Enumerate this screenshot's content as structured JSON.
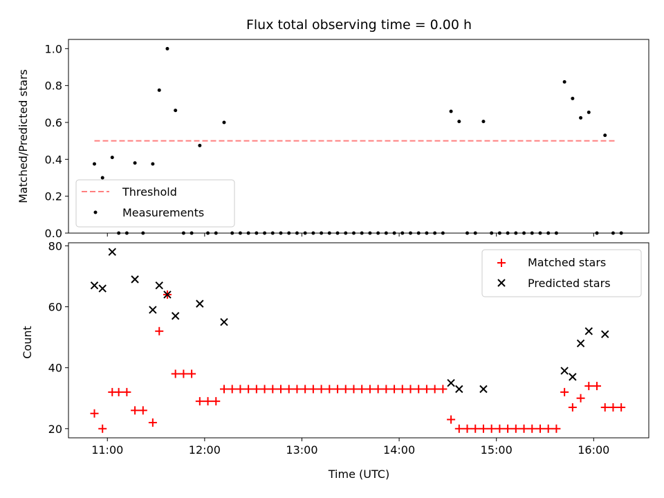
{
  "chart_data": [
    {
      "type": "scatter",
      "title": "Flux total observing time = 0.00 h",
      "xlabel": "",
      "ylabel": "Matched/Predicted stars",
      "xlim": [
        "10:36",
        "16:34"
      ],
      "ylim": [
        0,
        1.05
      ],
      "yticks": [
        0.0,
        0.2,
        0.4,
        0.6,
        0.8,
        1.0
      ],
      "ytick_labels": [
        "0.0",
        "0.2",
        "0.4",
        "0.6",
        "0.8",
        "1.0"
      ],
      "legend_position": "lower-left",
      "series": [
        {
          "name": "Threshold",
          "style": "dashed-line",
          "color": "#ff7f7f",
          "x": [
            "10:52",
            "16:13"
          ],
          "y": [
            0.5,
            0.5
          ]
        },
        {
          "name": "Measurements",
          "style": "dot",
          "color": "#000000",
          "points": [
            [
              "10:52",
              0.375
            ],
            [
              "10:57",
              0.3
            ],
            [
              "11:03",
              0.41
            ],
            [
              "11:07",
              0.0
            ],
            [
              "11:12",
              0.0
            ],
            [
              "11:17",
              0.38
            ],
            [
              "11:22",
              0.0
            ],
            [
              "11:28",
              0.375
            ],
            [
              "11:32",
              0.775
            ],
            [
              "11:37",
              1.0
            ],
            [
              "11:42",
              0.665
            ],
            [
              "11:47",
              0.0
            ],
            [
              "11:52",
              0.0
            ],
            [
              "11:57",
              0.475
            ],
            [
              "12:02",
              0.0
            ],
            [
              "12:07",
              0.0
            ],
            [
              "12:12",
              0.6
            ],
            [
              "12:17",
              0.0
            ],
            [
              "12:22",
              0.0
            ],
            [
              "12:27",
              0.0
            ],
            [
              "12:32",
              0.0
            ],
            [
              "12:37",
              0.0
            ],
            [
              "12:42",
              0.0
            ],
            [
              "12:47",
              0.0
            ],
            [
              "12:52",
              0.0
            ],
            [
              "12:57",
              0.0
            ],
            [
              "13:02",
              0.0
            ],
            [
              "13:07",
              0.0
            ],
            [
              "13:12",
              0.0
            ],
            [
              "13:17",
              0.0
            ],
            [
              "13:22",
              0.0
            ],
            [
              "13:27",
              0.0
            ],
            [
              "13:32",
              0.0
            ],
            [
              "13:37",
              0.0
            ],
            [
              "13:42",
              0.0
            ],
            [
              "13:47",
              0.0
            ],
            [
              "13:52",
              0.0
            ],
            [
              "13:57",
              0.0
            ],
            [
              "14:02",
              0.0
            ],
            [
              "14:07",
              0.0
            ],
            [
              "14:12",
              0.0
            ],
            [
              "14:17",
              0.0
            ],
            [
              "14:22",
              0.0
            ],
            [
              "14:27",
              0.0
            ],
            [
              "14:32",
              0.66
            ],
            [
              "14:37",
              0.605
            ],
            [
              "14:42",
              0.0
            ],
            [
              "14:47",
              0.0
            ],
            [
              "14:52",
              0.605
            ],
            [
              "14:57",
              0.0
            ],
            [
              "15:02",
              0.0
            ],
            [
              "15:07",
              0.0
            ],
            [
              "15:12",
              0.0
            ],
            [
              "15:17",
              0.0
            ],
            [
              "15:22",
              0.0
            ],
            [
              "15:27",
              0.0
            ],
            [
              "15:32",
              0.0
            ],
            [
              "15:37",
              0.0
            ],
            [
              "15:42",
              0.82
            ],
            [
              "15:47",
              0.73
            ],
            [
              "15:52",
              0.625
            ],
            [
              "15:57",
              0.655
            ],
            [
              "16:02",
              0.0
            ],
            [
              "16:07",
              0.53
            ],
            [
              "16:12",
              0.0
            ],
            [
              "16:17",
              0.0
            ]
          ]
        }
      ]
    },
    {
      "type": "scatter",
      "title": "",
      "xlabel": "Time (UTC)",
      "ylabel": "Count",
      "xlim": [
        "10:36",
        "16:34"
      ],
      "ylim": [
        17,
        81
      ],
      "yticks": [
        20,
        40,
        60,
        80
      ],
      "ytick_labels": [
        "20",
        "40",
        "60",
        "80"
      ],
      "xticks": [
        "11:00",
        "12:00",
        "13:00",
        "14:00",
        "15:00",
        "16:00"
      ],
      "xtick_labels": [
        "11:00",
        "12:00",
        "13:00",
        "14:00",
        "15:00",
        "16:00"
      ],
      "legend_position": "upper-right",
      "series": [
        {
          "name": "Matched stars",
          "marker": "plus",
          "color": "#ff0000",
          "points": [
            [
              "10:52",
              25
            ],
            [
              "10:57",
              20
            ],
            [
              "11:03",
              32
            ],
            [
              "11:07",
              32
            ],
            [
              "11:12",
              32
            ],
            [
              "11:17",
              26
            ],
            [
              "11:22",
              26
            ],
            [
              "11:28",
              22
            ],
            [
              "11:32",
              52
            ],
            [
              "11:37",
              64
            ],
            [
              "11:42",
              38
            ],
            [
              "11:47",
              38
            ],
            [
              "11:52",
              38
            ],
            [
              "11:57",
              29
            ],
            [
              "12:02",
              29
            ],
            [
              "12:07",
              29
            ],
            [
              "12:12",
              33
            ],
            [
              "12:17",
              33
            ],
            [
              "12:22",
              33
            ],
            [
              "12:27",
              33
            ],
            [
              "12:32",
              33
            ],
            [
              "12:37",
              33
            ],
            [
              "12:42",
              33
            ],
            [
              "12:47",
              33
            ],
            [
              "12:52",
              33
            ],
            [
              "12:57",
              33
            ],
            [
              "13:02",
              33
            ],
            [
              "13:07",
              33
            ],
            [
              "13:12",
              33
            ],
            [
              "13:17",
              33
            ],
            [
              "13:22",
              33
            ],
            [
              "13:27",
              33
            ],
            [
              "13:32",
              33
            ],
            [
              "13:37",
              33
            ],
            [
              "13:42",
              33
            ],
            [
              "13:47",
              33
            ],
            [
              "13:52",
              33
            ],
            [
              "13:57",
              33
            ],
            [
              "14:02",
              33
            ],
            [
              "14:07",
              33
            ],
            [
              "14:12",
              33
            ],
            [
              "14:17",
              33
            ],
            [
              "14:22",
              33
            ],
            [
              "14:27",
              33
            ],
            [
              "14:32",
              23
            ],
            [
              "14:37",
              20
            ],
            [
              "14:42",
              20
            ],
            [
              "14:47",
              20
            ],
            [
              "14:52",
              20
            ],
            [
              "14:57",
              20
            ],
            [
              "15:02",
              20
            ],
            [
              "15:07",
              20
            ],
            [
              "15:12",
              20
            ],
            [
              "15:17",
              20
            ],
            [
              "15:22",
              20
            ],
            [
              "15:27",
              20
            ],
            [
              "15:32",
              20
            ],
            [
              "15:37",
              20
            ],
            [
              "15:42",
              32
            ],
            [
              "15:47",
              27
            ],
            [
              "15:52",
              30
            ],
            [
              "15:57",
              34
            ],
            [
              "16:02",
              34
            ],
            [
              "16:07",
              27
            ],
            [
              "16:12",
              27
            ],
            [
              "16:17",
              27
            ]
          ]
        },
        {
          "name": "Predicted stars",
          "marker": "x",
          "color": "#000000",
          "points": [
            [
              "10:52",
              67
            ],
            [
              "10:57",
              66
            ],
            [
              "11:03",
              78
            ],
            [
              "11:17",
              69
            ],
            [
              "11:28",
              59
            ],
            [
              "11:32",
              67
            ],
            [
              "11:37",
              64
            ],
            [
              "11:42",
              57
            ],
            [
              "11:57",
              61
            ],
            [
              "12:12",
              55
            ],
            [
              "14:32",
              35
            ],
            [
              "14:37",
              33
            ],
            [
              "14:52",
              33
            ],
            [
              "15:42",
              39
            ],
            [
              "15:47",
              37
            ],
            [
              "15:52",
              48
            ],
            [
              "15:57",
              52
            ],
            [
              "16:07",
              51
            ]
          ]
        }
      ]
    }
  ]
}
